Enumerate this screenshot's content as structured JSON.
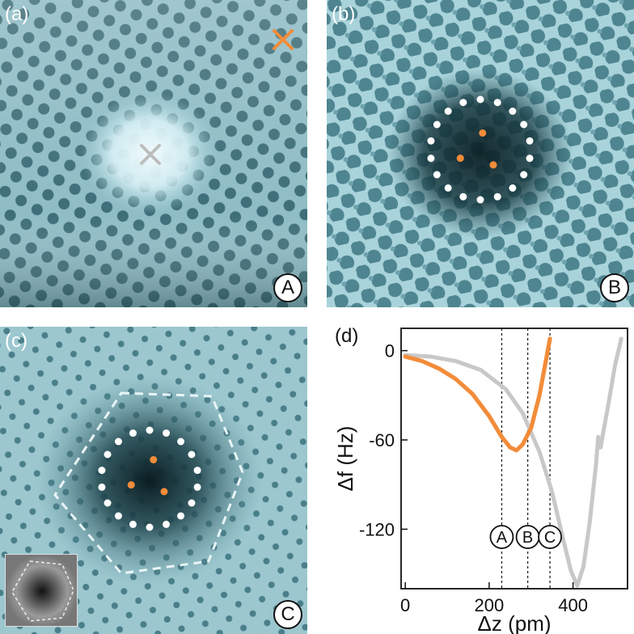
{
  "panels": {
    "a": {
      "label": "(a)",
      "badge": "A"
    },
    "b": {
      "label": "(b)",
      "badge": "B"
    },
    "c": {
      "label": "(c)",
      "badge": "C"
    },
    "d": {
      "label": "(d)"
    }
  },
  "colors": {
    "orange": "#F28C3A",
    "gray": "#C8C8C8",
    "afm_light": "#CFE8EE",
    "afm_mid": "#7FAEB8",
    "afm_dark": "#0E2A30",
    "lattice_dot": "#5E9AA6"
  },
  "chart_data": {
    "type": "line",
    "xlabel": "Δz (pm)",
    "ylabel": "Δf (Hz)",
    "xlim": [
      -10,
      530
    ],
    "ylim": [
      -160,
      15
    ],
    "xticks": [
      0,
      200,
      400
    ],
    "yticks": [
      0,
      -60,
      -120
    ],
    "series": [
      {
        "name": "orange",
        "color": "#F28C3A",
        "x": [
          0,
          40,
          80,
          120,
          160,
          200,
          230,
          250,
          265,
          280,
          300,
          320,
          345
        ],
        "y": [
          -4,
          -7,
          -12,
          -19,
          -29,
          -44,
          -58,
          -65,
          -67,
          -63,
          -52,
          -30,
          8
        ]
      },
      {
        "name": "gray",
        "color": "#C8C8C8",
        "x": [
          0,
          60,
          120,
          180,
          240,
          280,
          320,
          350,
          375,
          395,
          410,
          425,
          440,
          455,
          460,
          466,
          472,
          485,
          500,
          515
        ],
        "y": [
          -3,
          -4,
          -7,
          -13,
          -26,
          -42,
          -68,
          -95,
          -125,
          -148,
          -158,
          -145,
          -115,
          -76,
          -58,
          -65,
          -55,
          -35,
          -10,
          8
        ]
      }
    ],
    "markers": [
      {
        "label": "A",
        "x": 230
      },
      {
        "label": "B",
        "x": 292
      },
      {
        "label": "C",
        "x": 345
      }
    ]
  }
}
